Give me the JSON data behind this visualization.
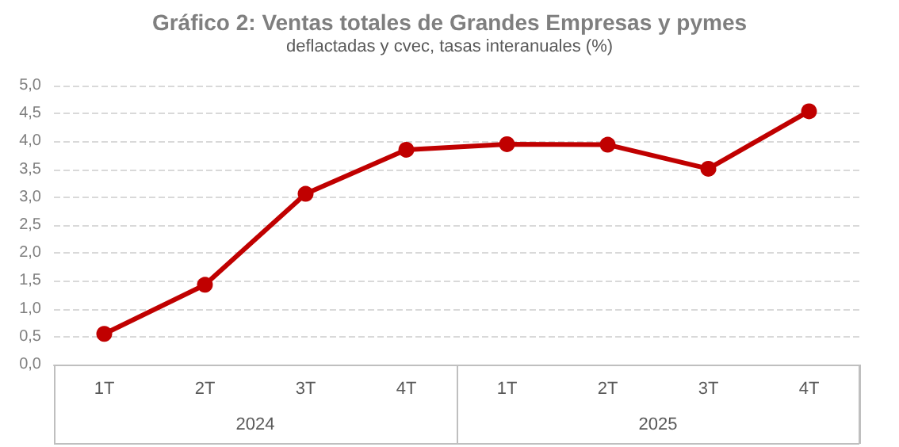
{
  "chart_data": {
    "type": "line",
    "title": "Gráfico 2: Ventas totales de Grandes Empresas y pymes",
    "subtitle": "deflactadas y cvec, tasas interanuales (%)",
    "categories": [
      "1T",
      "2T",
      "3T",
      "4T",
      "1T",
      "2T",
      "3T",
      "4T"
    ],
    "annotations": [
      "2024",
      "2025"
    ],
    "series": [
      {
        "color": "#c00000",
        "values": [
          0.55,
          1.43,
          3.06,
          3.85,
          3.95,
          3.94,
          3.51,
          4.54
        ]
      }
    ],
    "ylim": [
      0,
      5
    ],
    "yticks": [
      {
        "value": 0,
        "label": "0,0"
      },
      {
        "value": 0.5,
        "label": "0,5"
      },
      {
        "value": 1,
        "label": "1,0"
      },
      {
        "value": 1.5,
        "label": "1,5"
      },
      {
        "value": 2,
        "label": "2,0"
      },
      {
        "value": 2.5,
        "label": "2,5"
      },
      {
        "value": 3,
        "label": "3,0"
      },
      {
        "value": 3.5,
        "label": "3,5"
      },
      {
        "value": 4,
        "label": "4,0"
      },
      {
        "value": 4.5,
        "label": "4,5"
      },
      {
        "value": 5,
        "label": "5,0"
      }
    ],
    "grid": "y",
    "marker": "circle",
    "line_style": "solid"
  }
}
